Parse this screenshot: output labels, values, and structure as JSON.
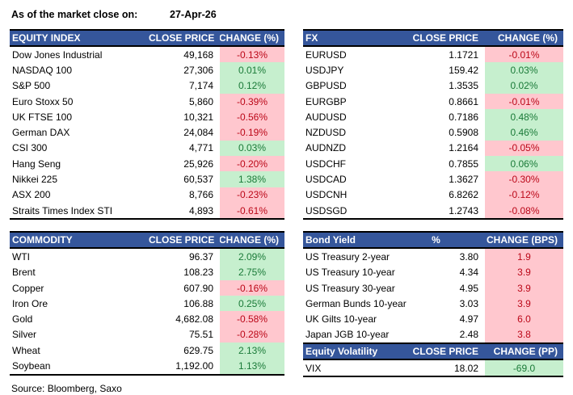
{
  "title": {
    "label": "As of the market close on:",
    "date": "27-Apr-26"
  },
  "source": "Source: Bloomberg, Saxo",
  "colors": {
    "header_bg": "#35569B",
    "positive_bg": "#C6EFCE",
    "positive_text": "#1A7A38",
    "negative_bg": "#FFC7CE",
    "negative_text": "#BB0718"
  },
  "tables": {
    "equity": {
      "title": "EQUITY INDEX",
      "col2": "CLOSE PRICE",
      "col3": "CHANGE (%)",
      "rows": [
        {
          "name": "Dow Jones Industrial",
          "price": "49,168",
          "change": "-0.13%",
          "tone": "bad"
        },
        {
          "name": "NASDAQ 100",
          "price": "27,306",
          "change": "0.01%",
          "tone": "good"
        },
        {
          "name": "S&P 500",
          "price": "7,174",
          "change": "0.12%",
          "tone": "good"
        },
        {
          "name": "Euro Stoxx 50",
          "price": "5,860",
          "change": "-0.39%",
          "tone": "bad"
        },
        {
          "name": "UK FTSE 100",
          "price": "10,321",
          "change": "-0.56%",
          "tone": "bad"
        },
        {
          "name": "German DAX",
          "price": "24,084",
          "change": "-0.19%",
          "tone": "bad"
        },
        {
          "name": "CSI 300",
          "price": "4,771",
          "change": "0.03%",
          "tone": "good"
        },
        {
          "name": "Hang Seng",
          "price": "25,926",
          "change": "-0.20%",
          "tone": "bad"
        },
        {
          "name": "Nikkei 225",
          "price": "60,537",
          "change": "1.38%",
          "tone": "good"
        },
        {
          "name": "ASX 200",
          "price": "8,766",
          "change": "-0.23%",
          "tone": "bad"
        },
        {
          "name": "Straits Times Index STI",
          "price": "4,893",
          "change": "-0.61%",
          "tone": "bad"
        }
      ]
    },
    "fx": {
      "title": "FX",
      "col2": "CLOSE PRICE",
      "col3": "CHANGE (%)",
      "rows": [
        {
          "name": "EURUSD",
          "price": "1.1721",
          "change": "-0.01%",
          "tone": "bad"
        },
        {
          "name": "USDJPY",
          "price": "159.42",
          "change": "0.03%",
          "tone": "good"
        },
        {
          "name": "GBPUSD",
          "price": "1.3535",
          "change": "0.02%",
          "tone": "good"
        },
        {
          "name": "EURGBP",
          "price": "0.8661",
          "change": "-0.01%",
          "tone": "bad"
        },
        {
          "name": "AUDUSD",
          "price": "0.7186",
          "change": "0.48%",
          "tone": "good"
        },
        {
          "name": "NZDUSD",
          "price": "0.5908",
          "change": "0.46%",
          "tone": "good"
        },
        {
          "name": "AUDNZD",
          "price": "1.2164",
          "change": "-0.05%",
          "tone": "bad"
        },
        {
          "name": "USDCHF",
          "price": "0.7855",
          "change": "0.06%",
          "tone": "good"
        },
        {
          "name": "USDCAD",
          "price": "1.3627",
          "change": "-0.30%",
          "tone": "bad"
        },
        {
          "name": "USDCNH",
          "price": "6.8262",
          "change": "-0.12%",
          "tone": "bad"
        },
        {
          "name": "USDSGD",
          "price": "1.2743",
          "change": "-0.08%",
          "tone": "bad"
        }
      ]
    },
    "commodity": {
      "title": "COMMODITY",
      "col2": "CLOSE PRICE",
      "col3": "CHANGE (%)",
      "rows": [
        {
          "name": "WTI",
          "price": "96.37",
          "change": "2.09%",
          "tone": "good"
        },
        {
          "name": "Brent",
          "price": "108.23",
          "change": "2.75%",
          "tone": "good"
        },
        {
          "name": "Copper",
          "price": "607.90",
          "change": "-0.16%",
          "tone": "bad"
        },
        {
          "name": "Iron Ore",
          "price": "106.88",
          "change": "0.25%",
          "tone": "good"
        },
        {
          "name": "Gold",
          "price": "4,682.08",
          "change": "-0.58%",
          "tone": "bad"
        },
        {
          "name": "Silver",
          "price": "75.51",
          "change": "-0.28%",
          "tone": "bad"
        },
        {
          "name": "Wheat",
          "price": "629.75",
          "change": "2.13%",
          "tone": "good"
        },
        {
          "name": "Soybean",
          "price": "1,192.00",
          "change": "1.13%",
          "tone": "good"
        }
      ]
    },
    "bond": {
      "title": "Bond Yield",
      "col2": "%",
      "col2_align": "center",
      "col3": "CHANGE (BPS)",
      "rows": [
        {
          "name": "US Treasury 2-year",
          "price": "3.80",
          "change": "1.9",
          "tone": "bad"
        },
        {
          "name": "US Treasury 10-year",
          "price": "4.34",
          "change": "3.9",
          "tone": "bad"
        },
        {
          "name": "US Treasury 30-year",
          "price": "4.95",
          "change": "3.9",
          "tone": "bad"
        },
        {
          "name": "German Bunds 10-year",
          "price": "3.03",
          "change": "3.9",
          "tone": "bad"
        },
        {
          "name": "UK Gilts 10-year",
          "price": "4.97",
          "change": "6.0",
          "tone": "bad"
        },
        {
          "name": "Japan JGB 10-year",
          "price": "2.48",
          "change": "3.8",
          "tone": "bad"
        }
      ]
    },
    "volatility": {
      "title": "Equity Volatility",
      "col2": "CLOSE PRICE",
      "col3": "CHANGE (PP)",
      "rows": [
        {
          "name": "VIX",
          "price": "18.02",
          "change": "-69.0",
          "tone": "good"
        }
      ]
    }
  }
}
